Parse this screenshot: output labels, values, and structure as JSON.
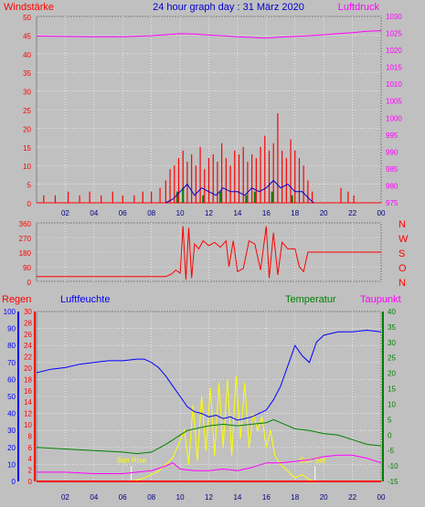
{
  "title": "24 hour graph day : 31 März 2020",
  "colors": {
    "background": "#c0c0c0",
    "plot": "#c0c0c0",
    "grid": "#ffffff",
    "wind": "#ff0000",
    "gust": "#0000cc",
    "pressure": "#ff00ff",
    "direction": "#ff0000",
    "rain": "#ff0000",
    "humidity": "#0000ff",
    "temperature": "#008000",
    "dewpoint": "#ff00ff",
    "solar": "#ffff00",
    "sunline": "#ffffff"
  },
  "x_ticks": [
    "02",
    "04",
    "06",
    "08",
    "10",
    "12",
    "14",
    "16",
    "18",
    "20",
    "22",
    "00"
  ],
  "chart_data": [
    {
      "type": "line",
      "name": "wind-pressure-panel",
      "left_label": "Windstärke",
      "right_label": "Luftdruck",
      "left_ticks": [
        "50",
        "45",
        "40",
        "35",
        "30",
        "25",
        "20",
        "15",
        "10",
        "5",
        "0"
      ],
      "right_ticks": [
        "1030",
        "1025",
        "1020",
        "1015",
        "1010",
        "1005",
        "1000",
        "995",
        "990",
        "985",
        "980",
        "975"
      ],
      "ylim_left": [
        0,
        50
      ],
      "ylim_right": [
        975,
        1030
      ],
      "pressure": {
        "x": [
          0,
          2,
          4,
          6,
          8,
          9,
          10,
          11,
          12,
          13,
          14,
          15,
          16,
          17,
          18,
          19,
          20,
          21,
          22,
          23,
          24
        ],
        "values": [
          1024.2,
          1024.1,
          1024.0,
          1024.0,
          1024.3,
          1024.6,
          1024.9,
          1024.8,
          1024.5,
          1024.3,
          1024.0,
          1023.8,
          1023.6,
          1023.9,
          1024.1,
          1024.3,
          1024.6,
          1024.9,
          1025.2,
          1025.6,
          1025.8
        ]
      },
      "wind": {
        "x": [
          0.5,
          1.3,
          2.2,
          3.0,
          3.7,
          4.5,
          5.3,
          6.0,
          6.8,
          7.4,
          8.0,
          8.6,
          9.0,
          9.3,
          9.6,
          9.9,
          10.2,
          10.5,
          10.8,
          11.1,
          11.4,
          11.7,
          12.0,
          12.3,
          12.6,
          12.9,
          13.2,
          13.5,
          13.8,
          14.1,
          14.4,
          14.7,
          15.0,
          15.3,
          15.6,
          15.9,
          16.2,
          16.5,
          16.8,
          17.1,
          17.4,
          17.7,
          18.0,
          18.3,
          18.6,
          18.9,
          19.2,
          21.2,
          21.7,
          22.1
        ],
        "values": [
          2,
          2,
          3,
          2,
          3,
          2,
          3,
          2,
          2,
          3,
          3,
          4,
          6,
          9,
          10,
          12,
          14,
          11,
          13,
          10,
          15,
          9,
          12,
          13,
          11,
          16,
          12,
          10,
          14,
          13,
          15,
          11,
          13,
          12,
          15,
          18,
          14,
          16,
          24,
          14,
          12,
          17,
          14,
          12,
          10,
          6,
          3,
          4,
          3,
          2
        ]
      },
      "gust": {
        "x": [
          9.0,
          9.5,
          10.0,
          10.5,
          11.0,
          11.5,
          12.0,
          12.5,
          13.0,
          13.5,
          14.0,
          14.5,
          15.0,
          15.5,
          16.0,
          16.5,
          17.0,
          17.5,
          18.0,
          18.5,
          19.0,
          19.3
        ],
        "values": [
          0,
          1,
          3,
          5,
          2,
          4,
          3,
          2,
          4,
          3,
          3,
          2,
          4,
          3,
          4,
          6,
          4,
          5,
          3,
          3,
          1,
          0
        ]
      },
      "calm": {
        "x": [
          9.8,
          10.2,
          11.6,
          12.8,
          14.6,
          15.2,
          16.4,
          17.8
        ],
        "values": [
          3,
          4,
          2,
          3,
          2,
          3,
          3,
          2
        ]
      }
    },
    {
      "type": "line",
      "name": "wind-direction-panel",
      "left_ticks": [
        "360",
        "270",
        "180",
        "90",
        "0"
      ],
      "right_ticks": [
        "N",
        "W",
        "S",
        "O",
        "N"
      ],
      "ylim": [
        0,
        360
      ],
      "direction": {
        "x": [
          0,
          4,
          8,
          9.0,
          9.4,
          9.7,
          10.0,
          10.2,
          10.4,
          10.6,
          10.8,
          11.0,
          11.3,
          11.6,
          12.0,
          12.4,
          12.8,
          13.2,
          13.4,
          13.7,
          14.0,
          14.4,
          14.8,
          15.2,
          15.6,
          16.0,
          16.2,
          16.5,
          16.8,
          17.1,
          17.5,
          18.0,
          18.3,
          18.6,
          18.9,
          19.3,
          20,
          22,
          24
        ],
        "values": [
          30,
          30,
          30,
          30,
          45,
          70,
          50,
          340,
          10,
          330,
          20,
          230,
          200,
          250,
          220,
          240,
          210,
          250,
          90,
          250,
          60,
          80,
          250,
          230,
          70,
          340,
          20,
          300,
          40,
          240,
          200,
          200,
          90,
          60,
          180,
          180,
          180,
          180,
          180
        ]
      }
    },
    {
      "type": "line",
      "name": "rain-humidity-temp-panel",
      "labels": {
        "rain": "Regen",
        "humidity": "Luftfeuchte",
        "temperature": "Temperatur",
        "dewpoint": "Taupunkt"
      },
      "humidity_ticks": [
        "100",
        "90",
        "80",
        "70",
        "60",
        "50",
        "40",
        "30",
        "20",
        "10",
        "0"
      ],
      "rain_ticks": [
        "30",
        "28",
        "26",
        "24",
        "22",
        "20",
        "18",
        "16",
        "14",
        "12",
        "10",
        "8",
        "6",
        "4",
        "2",
        "0"
      ],
      "temperature_ticks": [
        "40",
        "35",
        "30",
        "25",
        "20",
        "15",
        "10",
        "5",
        "0",
        "-5",
        "-10",
        "-15"
      ],
      "ylim_humidity": [
        0,
        100
      ],
      "ylim_temperature": [
        -15,
        40
      ],
      "sun_rise": {
        "label": "Sun Rise",
        "x": 6.6
      },
      "sun_set": {
        "label": "Sun Set",
        "x": 19.4
      },
      "humidity": {
        "x": [
          0,
          1,
          2,
          3,
          4,
          5,
          6,
          7,
          7.5,
          8,
          8.5,
          9,
          9.5,
          10,
          10.5,
          11,
          11.5,
          12,
          12.5,
          13,
          13.5,
          14,
          14.5,
          15,
          15.5,
          16,
          16.5,
          17,
          17.5,
          18,
          18.5,
          19,
          19.5,
          20,
          21,
          22,
          23,
          24
        ],
        "values": [
          64,
          66,
          67,
          69,
          70,
          71,
          71,
          72,
          72,
          70,
          67,
          62,
          56,
          50,
          44,
          41,
          40,
          38,
          39,
          37,
          38,
          36,
          37,
          38,
          40,
          42,
          48,
          56,
          68,
          80,
          74,
          70,
          82,
          86,
          88,
          88,
          89,
          88
        ]
      },
      "temperature": {
        "x": [
          0,
          2,
          4,
          6,
          7,
          8,
          9,
          10,
          10.5,
          11,
          12,
          13,
          14,
          15,
          16,
          16.5,
          17,
          17.5,
          18,
          19,
          20,
          21,
          22,
          23,
          24
        ],
        "values": [
          -4,
          -4.5,
          -5,
          -5.5,
          -6,
          -5.5,
          -3,
          0,
          1.5,
          2,
          3,
          3.5,
          3,
          3.5,
          4,
          5,
          4,
          3,
          2,
          1.5,
          0.5,
          0,
          -1.5,
          -3,
          -3.5
        ]
      },
      "dewpoint": {
        "x": [
          0,
          2,
          4,
          6,
          7,
          8,
          9,
          9.5,
          10,
          11,
          12,
          13,
          14,
          15,
          16,
          17,
          18,
          19,
          20,
          21,
          22,
          23,
          24
        ],
        "values": [
          -12,
          -12,
          -12.5,
          -12.5,
          -12,
          -11.5,
          -10,
          -9,
          -11,
          -11.5,
          -11.5,
          -11,
          -11.5,
          -10.5,
          -9,
          -9,
          -8.5,
          -8,
          -7,
          -6.5,
          -6.5,
          -7.5,
          -9
        ]
      },
      "solar": {
        "x": [
          6.6,
          7.5,
          8.5,
          9.5,
          10.3,
          10.6,
          10.9,
          11.2,
          11.5,
          11.8,
          12.1,
          12.4,
          12.7,
          13.0,
          13.3,
          13.6,
          13.9,
          14.2,
          14.5,
          14.8,
          15.1,
          15.4,
          15.7,
          16.0,
          16.3,
          16.6,
          17.0,
          17.5,
          18.0,
          18.5,
          19.0,
          19.4
        ],
        "values": [
          0,
          2,
          6,
          14,
          30,
          10,
          45,
          12,
          50,
          18,
          55,
          15,
          58,
          20,
          60,
          15,
          62,
          25,
          58,
          20,
          40,
          30,
          38,
          20,
          30,
          15,
          10,
          6,
          2,
          4,
          1,
          0
        ]
      },
      "rain_values": {
        "x": [
          0,
          24
        ],
        "values": [
          0,
          0
        ]
      }
    }
  ]
}
